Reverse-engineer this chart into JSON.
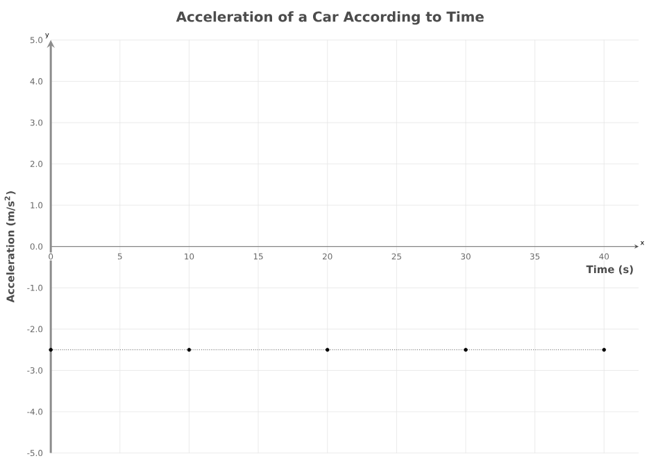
{
  "chart_data": {
    "type": "line",
    "title": "Acceleration of a Car According to Time",
    "xlabel": "Time (s)",
    "ylabel": "Acceleration (m/s$^{2}$)",
    "annotations": [
      "x",
      "y"
    ],
    "x": [
      0,
      10,
      20,
      30,
      40
    ],
    "series": [
      {
        "color": "#000000",
        "values": [
          -2.5,
          -2.5,
          -2.5,
          -2.5,
          -2.5
        ]
      }
    ],
    "xlim": [
      0,
      42.5
    ],
    "xticks": [
      0,
      5,
      10,
      15,
      20,
      25,
      30,
      35,
      40
    ],
    "ylim": [
      -5,
      5
    ],
    "yticks": [
      {
        "value": -5,
        "label": "-5.0"
      },
      {
        "value": -4,
        "label": "-4.0"
      },
      {
        "value": -3,
        "label": "-3.0"
      },
      {
        "value": -2,
        "label": "-2.0"
      },
      {
        "value": -1,
        "label": "-1.0"
      },
      {
        "value": 0,
        "label": "0.0"
      },
      {
        "value": 1,
        "label": "1.0"
      },
      {
        "value": 2,
        "label": "2.0"
      },
      {
        "value": 3,
        "label": "3.0"
      },
      {
        "value": 4,
        "label": "4.0"
      },
      {
        "value": 5,
        "label": "5.0"
      }
    ],
    "grid": true,
    "marker": "circle",
    "line_style": "dotted"
  }
}
